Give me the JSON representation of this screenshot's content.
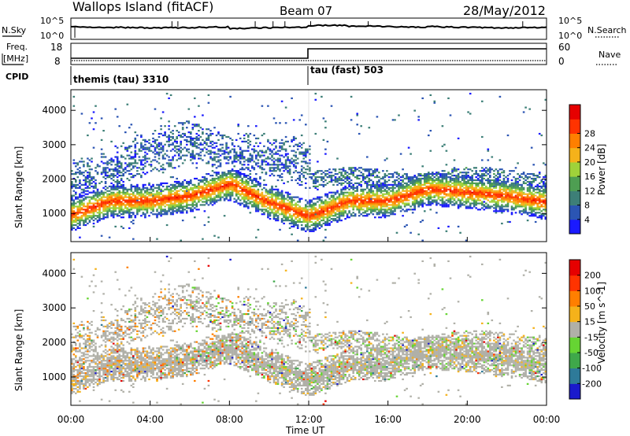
{
  "header": {
    "station": "Wallops Island (fitACF)",
    "beam": "Beam 07",
    "date": "28/May/2012"
  },
  "noise_panel": {
    "left_label": "N.Sky",
    "right_label": "N.Search",
    "left_ticks": [
      "10^5",
      "10^0"
    ],
    "right_ticks": [
      "10^5",
      "10^0"
    ]
  },
  "freq_panel": {
    "left_label_1": "Freq.",
    "left_label_2": "[MHz]",
    "right_label": "Nave",
    "left_ticks": [
      "18",
      "8"
    ],
    "right_ticks": [
      "60",
      "0"
    ]
  },
  "cpid_panel": {
    "label": "CPID",
    "modes": [
      {
        "name": "themis (tau) 3310",
        "start_hour": 0
      },
      {
        "name": "tau (fast) 503",
        "start_hour": 12
      }
    ]
  },
  "chart_data": [
    {
      "type": "heatmap",
      "panel": "power",
      "ylabel": "Slant Range [km]",
      "xlabel": "Time UT",
      "ylim": [
        180,
        4600
      ],
      "yticks": [
        1000,
        2000,
        3000,
        4000
      ],
      "xlim_hours": [
        0,
        24
      ],
      "colorbar": {
        "label": "Power [dB]",
        "ticks": [
          "4",
          "8",
          "12",
          "16",
          "20",
          "24",
          "28"
        ],
        "colors": [
          "#1a1aff",
          "#2b55b3",
          "#3d7f77",
          "#4e9e52",
          "#9fd23a",
          "#f5b21a",
          "#ff7f00",
          "#ff3300",
          "#e60000"
        ]
      },
      "echo_bands": [
        {
          "name": "main scatter band",
          "hours": [
            0,
            2,
            4,
            6,
            8,
            10,
            12,
            14,
            16,
            18,
            20,
            22,
            24
          ],
          "range_km": [
            950,
            1350,
            1350,
            1500,
            1850,
            1300,
            900,
            1350,
            1350,
            1700,
            1600,
            1500,
            1300
          ],
          "peak_db": 30
        },
        {
          "name": "upper diffuse band",
          "hours": [
            0,
            2,
            4,
            6,
            8,
            10,
            12
          ],
          "range_km": [
            1800,
            2200,
            2800,
            3000,
            2700,
            2600,
            2400
          ],
          "peak_db": 12
        }
      ]
    },
    {
      "type": "heatmap",
      "panel": "velocity",
      "ylabel": "Slant Range [km]",
      "xlabel": "Time UT",
      "ylim": [
        180,
        4600
      ],
      "yticks": [
        1000,
        2000,
        3000,
        4000
      ],
      "xlim_hours": [
        0,
        24
      ],
      "colorbar": {
        "label": "Velocity [m s^-1]",
        "ticks": [
          "200",
          "100",
          "50",
          "15",
          "-15",
          "-50",
          "-100",
          "-200"
        ],
        "colors": [
          "#1a1acc",
          "#2e7a99",
          "#3fa84a",
          "#66d433",
          "#b0b0a8",
          "#f5b21a",
          "#ff7f00",
          "#ff3300",
          "#e60000"
        ]
      }
    }
  ],
  "x_axis": {
    "ticks": [
      "00:00",
      "04:00",
      "08:00",
      "12:00",
      "16:00",
      "20:00",
      "00:00"
    ],
    "label": "Time UT"
  }
}
